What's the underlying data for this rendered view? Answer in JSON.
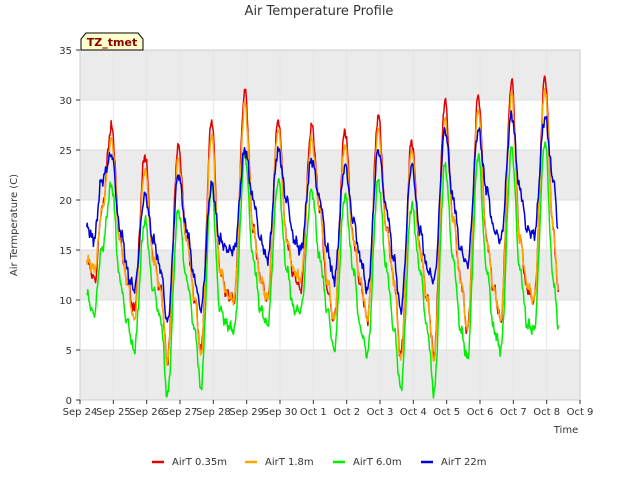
{
  "chart_data": {
    "type": "line",
    "title": "Air Temperature Profile",
    "xlabel": "Time",
    "ylabel": "Air Termperature (C)",
    "ylim": [
      0,
      35
    ],
    "xlim": [
      0,
      15
    ],
    "yticks": [
      0,
      5,
      10,
      15,
      20,
      25,
      30,
      35
    ],
    "xticks": [
      {
        "x": 0,
        "label": "Sep 24"
      },
      {
        "x": 1,
        "label": "Sep 25"
      },
      {
        "x": 2,
        "label": "Sep 26"
      },
      {
        "x": 3,
        "label": "Sep 27"
      },
      {
        "x": 4,
        "label": "Sep 28"
      },
      {
        "x": 5,
        "label": "Sep 29"
      },
      {
        "x": 6,
        "label": "Sep 30"
      },
      {
        "x": 7,
        "label": "Oct 1"
      },
      {
        "x": 8,
        "label": "Oct 2"
      },
      {
        "x": 9,
        "label": "Oct 3"
      },
      {
        "x": 10,
        "label": "Oct 4"
      },
      {
        "x": 11,
        "label": "Oct 5"
      },
      {
        "x": 12,
        "label": "Oct 6"
      },
      {
        "x": 13,
        "label": "Oct 7"
      },
      {
        "x": 14,
        "label": "Oct 8"
      },
      {
        "x": 15,
        "label": "Oct 9"
      }
    ],
    "grid": true,
    "band_colors": [
      "#ebebeb",
      "#ffffff"
    ],
    "legend_position": "bottom",
    "annotation": {
      "text": "TZ_tmet",
      "bg": "#ffffcc",
      "color": "#8b0000"
    },
    "series": [
      {
        "name": "AirT 0.35m",
        "color": "#e00000",
        "x": [
          0.2,
          0.45,
          0.65,
          0.95,
          1.2,
          1.4,
          1.62,
          1.95,
          2.2,
          2.42,
          2.62,
          2.95,
          3.2,
          3.45,
          3.62,
          3.95,
          4.2,
          4.42,
          4.62,
          4.95,
          5.2,
          5.42,
          5.62,
          5.95,
          6.2,
          6.42,
          6.62,
          6.95,
          7.2,
          7.42,
          7.62,
          7.95,
          8.2,
          8.42,
          8.62,
          8.95,
          9.2,
          9.42,
          9.62,
          9.95,
          10.2,
          10.42,
          10.62,
          10.95,
          11.2,
          11.42,
          11.62,
          11.95,
          12.2,
          12.42,
          12.62,
          12.95,
          13.2,
          13.42,
          13.62,
          13.95,
          14.2,
          14.35
        ],
        "y": [
          14,
          12,
          19,
          27.4,
          16,
          12,
          9,
          24.5,
          14,
          11,
          4,
          25.5,
          16,
          10,
          5,
          28,
          13,
          10.5,
          10,
          31,
          17,
          12,
          10,
          28,
          16,
          12.5,
          11,
          27.5,
          19,
          11,
          8,
          27,
          16,
          11.5,
          8,
          28.5,
          17,
          12,
          4.5,
          26,
          15,
          10,
          4.5,
          30,
          18,
          12,
          7,
          30.5,
          16,
          11,
          8,
          32,
          16,
          11,
          10,
          32.3,
          17,
          10.8
        ]
      },
      {
        "name": "AirT 1.8m",
        "color": "#ffa500",
        "x": [
          0.2,
          0.45,
          0.65,
          0.95,
          1.2,
          1.4,
          1.62,
          1.95,
          2.2,
          2.42,
          2.62,
          2.95,
          3.2,
          3.45,
          3.62,
          3.95,
          4.2,
          4.42,
          4.62,
          4.95,
          5.2,
          5.42,
          5.62,
          5.95,
          6.2,
          6.42,
          6.62,
          6.95,
          7.2,
          7.42,
          7.62,
          7.95,
          8.2,
          8.42,
          8.62,
          8.95,
          9.2,
          9.42,
          9.62,
          9.95,
          10.2,
          10.42,
          10.62,
          10.95,
          11.2,
          11.42,
          11.62,
          11.95,
          12.2,
          12.42,
          12.62,
          12.95,
          13.2,
          13.42,
          13.62,
          13.95,
          14.2,
          14.35
        ],
        "y": [
          14,
          13,
          19,
          26,
          16,
          12,
          8,
          23,
          14,
          11,
          3.8,
          24,
          16,
          10,
          4.5,
          26.5,
          13,
          10.5,
          10,
          29.5,
          17,
          12,
          10,
          27,
          16,
          13,
          12,
          26,
          19,
          12,
          8,
          25.5,
          16,
          12,
          8,
          27,
          17,
          12,
          4,
          25,
          15,
          10,
          4,
          28,
          18,
          12,
          7,
          29,
          16,
          11,
          8,
          30.5,
          16,
          11.5,
          10,
          31,
          17,
          11
        ]
      },
      {
        "name": "AirT 6.0m",
        "color": "#00ee00",
        "x": [
          0.2,
          0.42,
          0.65,
          0.95,
          1.2,
          1.4,
          1.62,
          1.95,
          2.2,
          2.42,
          2.62,
          2.95,
          3.2,
          3.45,
          3.62,
          3.95,
          4.2,
          4.42,
          4.62,
          4.95,
          5.2,
          5.42,
          5.62,
          5.95,
          6.2,
          6.42,
          6.62,
          6.95,
          7.2,
          7.42,
          7.62,
          7.95,
          8.2,
          8.42,
          8.62,
          8.95,
          9.2,
          9.42,
          9.62,
          9.95,
          10.2,
          10.42,
          10.62,
          10.95,
          11.2,
          11.42,
          11.62,
          11.95,
          12.2,
          12.42,
          12.62,
          12.95,
          13.2,
          13.42,
          13.62,
          13.95,
          14.2,
          14.35
        ],
        "y": [
          10.5,
          8.5,
          15,
          21.5,
          12,
          8,
          5,
          18,
          11,
          8,
          0.5,
          19,
          12,
          7,
          1.2,
          21.5,
          9,
          7.5,
          7,
          24.5,
          14,
          9,
          7.5,
          22,
          13,
          9,
          9,
          21,
          14,
          9,
          5,
          20.5,
          13,
          7,
          4.6,
          22,
          13,
          7,
          1.2,
          19.5,
          13,
          7,
          0.8,
          23.5,
          14,
          7,
          4.2,
          24.5,
          13,
          7,
          5,
          25.2,
          13,
          7.5,
          7,
          25.8,
          12,
          7.5
        ]
      },
      {
        "name": "AirT 22m",
        "color": "#0000dd",
        "x": [
          0.2,
          0.42,
          0.65,
          0.95,
          1.2,
          1.5,
          1.62,
          1.95,
          2.2,
          2.42,
          2.62,
          2.95,
          3.2,
          3.45,
          3.62,
          3.95,
          4.2,
          4.42,
          4.62,
          4.95,
          5.2,
          5.42,
          5.62,
          5.95,
          6.2,
          6.42,
          6.62,
          6.95,
          7.2,
          7.42,
          7.62,
          7.95,
          8.2,
          8.42,
          8.62,
          8.95,
          9.2,
          9.42,
          9.62,
          9.95,
          10.2,
          10.42,
          10.62,
          10.95,
          11.2,
          11.42,
          11.62,
          11.95,
          12.2,
          12.42,
          12.62,
          12.95,
          13.2,
          13.42,
          13.62,
          13.95,
          14.2,
          14.35
        ],
        "y": [
          17.3,
          16,
          22,
          24.5,
          17,
          12,
          11,
          20.5,
          16,
          13,
          7.8,
          22.5,
          17,
          12,
          9,
          21.5,
          16,
          15,
          15,
          25,
          20,
          16,
          14,
          25,
          20,
          16,
          15,
          24,
          20,
          15,
          12,
          23.5,
          18,
          14,
          11,
          25,
          19,
          14,
          9,
          23.5,
          17,
          13,
          12,
          27,
          20,
          15,
          13.5,
          27,
          21,
          17,
          16,
          28.5,
          21,
          17,
          16.5,
          28.3,
          22,
          17.2
        ]
      }
    ]
  }
}
